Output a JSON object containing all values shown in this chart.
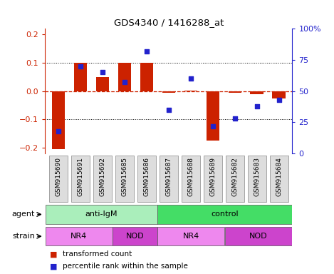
{
  "title": "GDS4340 / 1416288_at",
  "samples": [
    "GSM915690",
    "GSM915691",
    "GSM915692",
    "GSM915685",
    "GSM915686",
    "GSM915687",
    "GSM915688",
    "GSM915689",
    "GSM915682",
    "GSM915683",
    "GSM915684"
  ],
  "bar_values": [
    -0.205,
    0.101,
    0.05,
    0.101,
    0.101,
    -0.005,
    0.002,
    -0.175,
    -0.005,
    -0.01,
    -0.025
  ],
  "dot_values": [
    18,
    70,
    65,
    57,
    82,
    35,
    60,
    22,
    28,
    38,
    43
  ],
  "bar_color": "#cc2200",
  "dot_color": "#2222cc",
  "ylim": [
    -0.22,
    0.22
  ],
  "y2lim": [
    0,
    100
  ],
  "yticks": [
    -0.2,
    -0.1,
    0,
    0.1,
    0.2
  ],
  "y2ticks": [
    0,
    25,
    50,
    75,
    100
  ],
  "y2ticklabels": [
    "0",
    "25",
    "50",
    "75",
    "100%"
  ],
  "dotted_lines": [
    -0.1,
    0.1
  ],
  "agent_labels": [
    {
      "label": "anti-IgM",
      "start": 0,
      "end": 5,
      "color": "#aaeebb"
    },
    {
      "label": "control",
      "start": 5,
      "end": 11,
      "color": "#44dd66"
    }
  ],
  "strain_labels": [
    {
      "label": "NR4",
      "start": 0,
      "end": 3,
      "color": "#ee88ee"
    },
    {
      "label": "NOD",
      "start": 3,
      "end": 5,
      "color": "#cc44cc"
    },
    {
      "label": "NR4",
      "start": 5,
      "end": 8,
      "color": "#ee88ee"
    },
    {
      "label": "NOD",
      "start": 8,
      "end": 11,
      "color": "#cc44cc"
    }
  ],
  "legend_items": [
    {
      "label": "transformed count",
      "color": "#cc2200"
    },
    {
      "label": "percentile rank within the sample",
      "color": "#2222cc"
    }
  ],
  "agent_row_label": "agent",
  "strain_row_label": "strain",
  "tick_box_color": "#dddddd",
  "tick_box_edge": "#888888"
}
